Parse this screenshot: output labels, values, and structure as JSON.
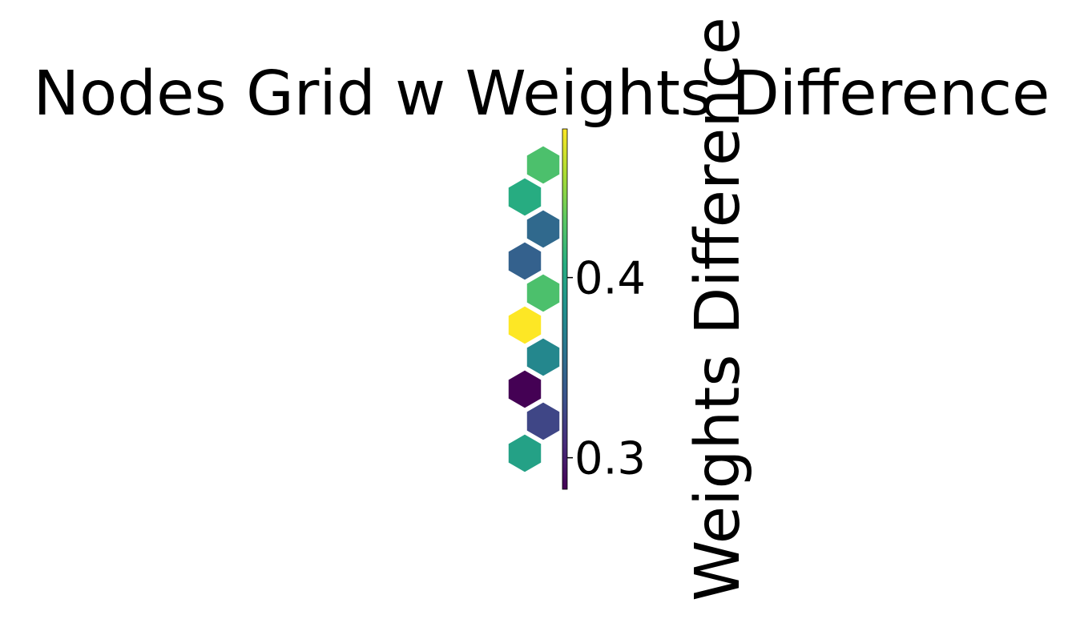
{
  "chart_data": {
    "type": "heatmap",
    "title": "Nodes Grid w Weights Difference",
    "colorbar": {
      "label": "Weights Difference",
      "colormap": "viridis",
      "vmin": 0.2825,
      "vmax": 0.4825,
      "ticks": [
        {
          "value": 0.3,
          "label": "0.3"
        },
        {
          "value": 0.4,
          "label": "0.4"
        }
      ]
    },
    "grid": {
      "layout": "hexagonal",
      "rows": 10,
      "cols": 1
    },
    "nodes": [
      {
        "row": 0,
        "col": 0,
        "value": 0.425
      },
      {
        "row": 1,
        "col": 0,
        "value": 0.407
      },
      {
        "row": 2,
        "col": 0,
        "value": 0.351
      },
      {
        "row": 3,
        "col": 0,
        "value": 0.345
      },
      {
        "row": 4,
        "col": 0,
        "value": 0.425
      },
      {
        "row": 5,
        "col": 0,
        "value": 0.4825
      },
      {
        "row": 6,
        "col": 0,
        "value": 0.375
      },
      {
        "row": 7,
        "col": 0,
        "value": 0.2825
      },
      {
        "row": 8,
        "col": 0,
        "value": 0.325
      },
      {
        "row": 9,
        "col": 0,
        "value": 0.397
      }
    ]
  }
}
